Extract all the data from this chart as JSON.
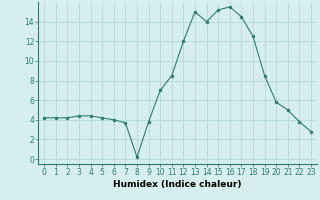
{
  "x": [
    0,
    1,
    2,
    3,
    4,
    5,
    6,
    7,
    8,
    9,
    10,
    11,
    12,
    13,
    14,
    15,
    16,
    17,
    18,
    19,
    20,
    21,
    22,
    23
  ],
  "y": [
    4.2,
    4.2,
    4.2,
    4.4,
    4.4,
    4.2,
    4.0,
    3.7,
    0.2,
    3.8,
    7.0,
    8.5,
    12.0,
    15.0,
    14.0,
    15.2,
    15.5,
    14.5,
    12.5,
    8.5,
    5.8,
    5.0,
    3.8,
    2.8
  ],
  "line_color": "#2e7d6e",
  "marker_color": "#2e7d6e",
  "bg_color": "#d6eeee",
  "grid_color": "#b8d8d8",
  "xlabel": "Humidex (Indice chaleur)",
  "xlim": [
    -0.5,
    23.5
  ],
  "ylim": [
    -0.5,
    16
  ],
  "yticks": [
    0,
    2,
    4,
    6,
    8,
    10,
    12,
    14
  ],
  "xticks": [
    0,
    1,
    2,
    3,
    4,
    5,
    6,
    7,
    8,
    9,
    10,
    11,
    12,
    13,
    14,
    15,
    16,
    17,
    18,
    19,
    20,
    21,
    22,
    23
  ],
  "xtick_labels": [
    "0",
    "1",
    "2",
    "3",
    "4",
    "5",
    "6",
    "7",
    "8",
    "9",
    "10",
    "11",
    "12",
    "13",
    "14",
    "15",
    "16",
    "17",
    "18",
    "19",
    "20",
    "21",
    "22",
    "23"
  ],
  "label_fontsize": 6.5,
  "tick_fontsize": 5.5
}
